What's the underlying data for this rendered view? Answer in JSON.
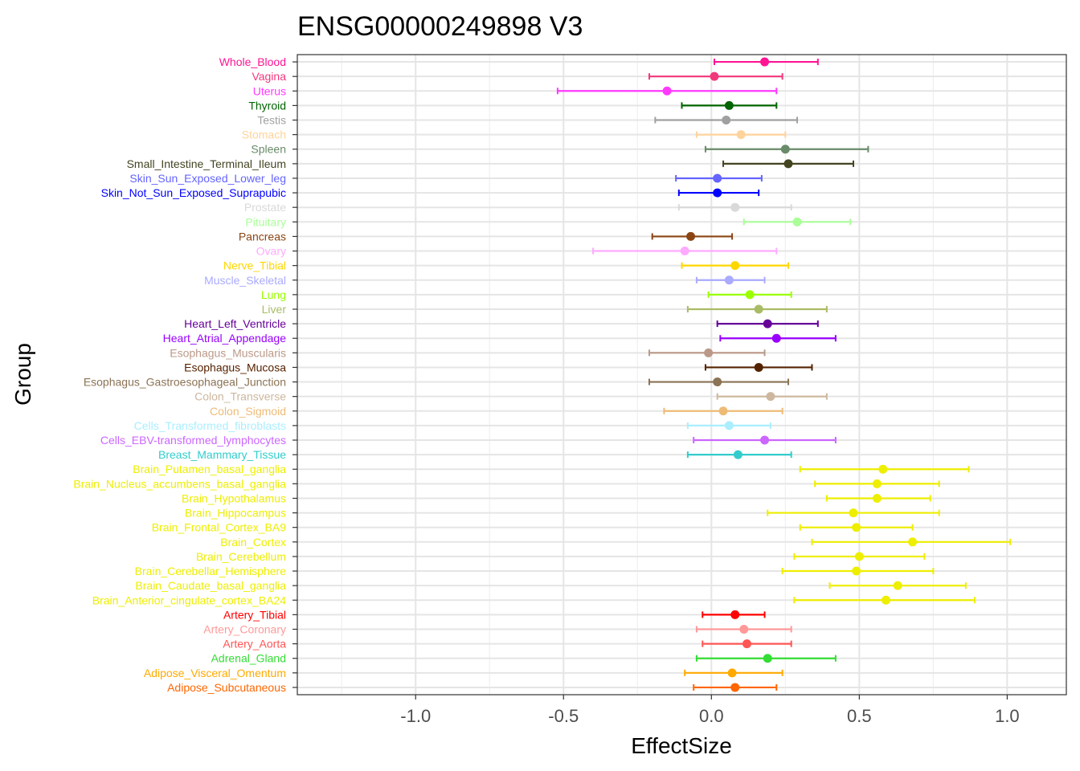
{
  "chart_data": {
    "type": "scatter",
    "subtype": "forest-plot",
    "title": "ENSG00000249898 V3",
    "xlabel": "EffectSize",
    "ylabel": "Group",
    "xlim": [
      -1.4,
      1.2
    ],
    "xticks": [
      -1.0,
      -0.5,
      0.0,
      0.5,
      1.0
    ],
    "xtick_labels": [
      "-1.0",
      "-0.5",
      "0.0",
      "0.5",
      "1.0"
    ],
    "grid": true,
    "groups": [
      {
        "name": "Whole_Blood",
        "color": "#FF1493",
        "value": 0.18,
        "low": 0.01,
        "high": 0.36
      },
      {
        "name": "Vagina",
        "color": "#F2387C",
        "value": 0.01,
        "low": -0.21,
        "high": 0.24
      },
      {
        "name": "Uterus",
        "color": "#FF3AFF",
        "value": -0.15,
        "low": -0.52,
        "high": 0.22
      },
      {
        "name": "Thyroid",
        "color": "#006400",
        "value": 0.06,
        "low": -0.1,
        "high": 0.22
      },
      {
        "name": "Testis",
        "color": "#A0A0A0",
        "value": 0.05,
        "low": -0.19,
        "high": 0.29
      },
      {
        "name": "Stomach",
        "color": "#FFD39B",
        "value": 0.1,
        "low": -0.05,
        "high": 0.25
      },
      {
        "name": "Spleen",
        "color": "#698B69",
        "value": 0.25,
        "low": -0.02,
        "high": 0.53
      },
      {
        "name": "Small_Intestine_Terminal_Ileum",
        "color": "#444422",
        "value": 0.26,
        "low": 0.04,
        "high": 0.48
      },
      {
        "name": "Skin_Sun_Exposed_Lower_leg",
        "color": "#6464FF",
        "value": 0.02,
        "low": -0.12,
        "high": 0.17
      },
      {
        "name": "Skin_Not_Sun_Exposed_Suprapubic",
        "color": "#0000FF",
        "value": 0.02,
        "low": -0.11,
        "high": 0.16
      },
      {
        "name": "Prostate",
        "color": "#D9D9D9",
        "value": 0.08,
        "low": -0.11,
        "high": 0.27
      },
      {
        "name": "Pituitary",
        "color": "#AAFF99",
        "value": 0.29,
        "low": 0.11,
        "high": 0.47
      },
      {
        "name": "Pancreas",
        "color": "#8B4513",
        "value": -0.07,
        "low": -0.2,
        "high": 0.07
      },
      {
        "name": "Ovary",
        "color": "#FFAAFF",
        "value": -0.09,
        "low": -0.4,
        "high": 0.22
      },
      {
        "name": "Nerve_Tibial",
        "color": "#FFD700",
        "value": 0.08,
        "low": -0.1,
        "high": 0.26
      },
      {
        "name": "Muscle_Skeletal",
        "color": "#AAAAFF",
        "value": 0.06,
        "low": -0.05,
        "high": 0.18
      },
      {
        "name": "Lung",
        "color": "#9AFF00",
        "value": 0.13,
        "low": -0.01,
        "high": 0.27
      },
      {
        "name": "Liver",
        "color": "#AABB66",
        "value": 0.16,
        "low": -0.08,
        "high": 0.39
      },
      {
        "name": "Heart_Left_Ventricle",
        "color": "#660099",
        "value": 0.19,
        "low": 0.02,
        "high": 0.36
      },
      {
        "name": "Heart_Atrial_Appendage",
        "color": "#9900FF",
        "value": 0.22,
        "low": 0.03,
        "high": 0.42
      },
      {
        "name": "Esophagus_Muscularis",
        "color": "#BB9988",
        "value": -0.01,
        "low": -0.21,
        "high": 0.18
      },
      {
        "name": "Esophagus_Mucosa",
        "color": "#552200",
        "value": 0.16,
        "low": -0.02,
        "high": 0.34
      },
      {
        "name": "Esophagus_Gastroesophageal_Junction",
        "color": "#8B7355",
        "value": 0.02,
        "low": -0.21,
        "high": 0.26
      },
      {
        "name": "Colon_Transverse",
        "color": "#CDB79E",
        "value": 0.2,
        "low": 0.02,
        "high": 0.39
      },
      {
        "name": "Colon_Sigmoid",
        "color": "#EEBB77",
        "value": 0.04,
        "low": -0.16,
        "high": 0.24
      },
      {
        "name": "Cells_Transformed_fibroblasts",
        "color": "#AAEEFF",
        "value": 0.06,
        "low": -0.08,
        "high": 0.2
      },
      {
        "name": "Cells_EBV-transformed_lymphocytes",
        "color": "#CC66FF",
        "value": 0.18,
        "low": -0.06,
        "high": 0.42
      },
      {
        "name": "Breast_Mammary_Tissue",
        "color": "#33CCCC",
        "value": 0.09,
        "low": -0.08,
        "high": 0.27
      },
      {
        "name": "Brain_Putamen_basal_ganglia",
        "color": "#EEEE00",
        "value": 0.58,
        "low": 0.3,
        "high": 0.87
      },
      {
        "name": "Brain_Nucleus_accumbens_basal_ganglia",
        "color": "#EEEE00",
        "value": 0.56,
        "low": 0.35,
        "high": 0.77
      },
      {
        "name": "Brain_Hypothalamus",
        "color": "#EEEE00",
        "value": 0.56,
        "low": 0.39,
        "high": 0.74
      },
      {
        "name": "Brain_Hippocampus",
        "color": "#EEEE00",
        "value": 0.48,
        "low": 0.19,
        "high": 0.77
      },
      {
        "name": "Brain_Frontal_Cortex_BA9",
        "color": "#EEEE00",
        "value": 0.49,
        "low": 0.3,
        "high": 0.68
      },
      {
        "name": "Brain_Cortex",
        "color": "#EEEE00",
        "value": 0.68,
        "low": 0.34,
        "high": 1.01
      },
      {
        "name": "Brain_Cerebellum",
        "color": "#EEEE00",
        "value": 0.5,
        "low": 0.28,
        "high": 0.72
      },
      {
        "name": "Brain_Cerebellar_Hemisphere",
        "color": "#EEEE00",
        "value": 0.49,
        "low": 0.24,
        "high": 0.75
      },
      {
        "name": "Brain_Caudate_basal_ganglia",
        "color": "#EEEE00",
        "value": 0.63,
        "low": 0.4,
        "high": 0.86
      },
      {
        "name": "Brain_Anterior_cingulate_cortex_BA24",
        "color": "#EEEE00",
        "value": 0.59,
        "low": 0.28,
        "high": 0.89
      },
      {
        "name": "Artery_Tibial",
        "color": "#FF0000",
        "value": 0.08,
        "low": -0.03,
        "high": 0.18
      },
      {
        "name": "Artery_Coronary",
        "color": "#FF9999",
        "value": 0.11,
        "low": -0.05,
        "high": 0.27
      },
      {
        "name": "Artery_Aorta",
        "color": "#FF5555",
        "value": 0.12,
        "low": -0.03,
        "high": 0.27
      },
      {
        "name": "Adrenal_Gland",
        "color": "#33DD33",
        "value": 0.19,
        "low": -0.05,
        "high": 0.42
      },
      {
        "name": "Adipose_Visceral_Omentum",
        "color": "#FFAA00",
        "value": 0.07,
        "low": -0.09,
        "high": 0.24
      },
      {
        "name": "Adipose_Subcutaneous",
        "color": "#FF6600",
        "value": 0.08,
        "low": -0.06,
        "high": 0.22
      }
    ]
  }
}
